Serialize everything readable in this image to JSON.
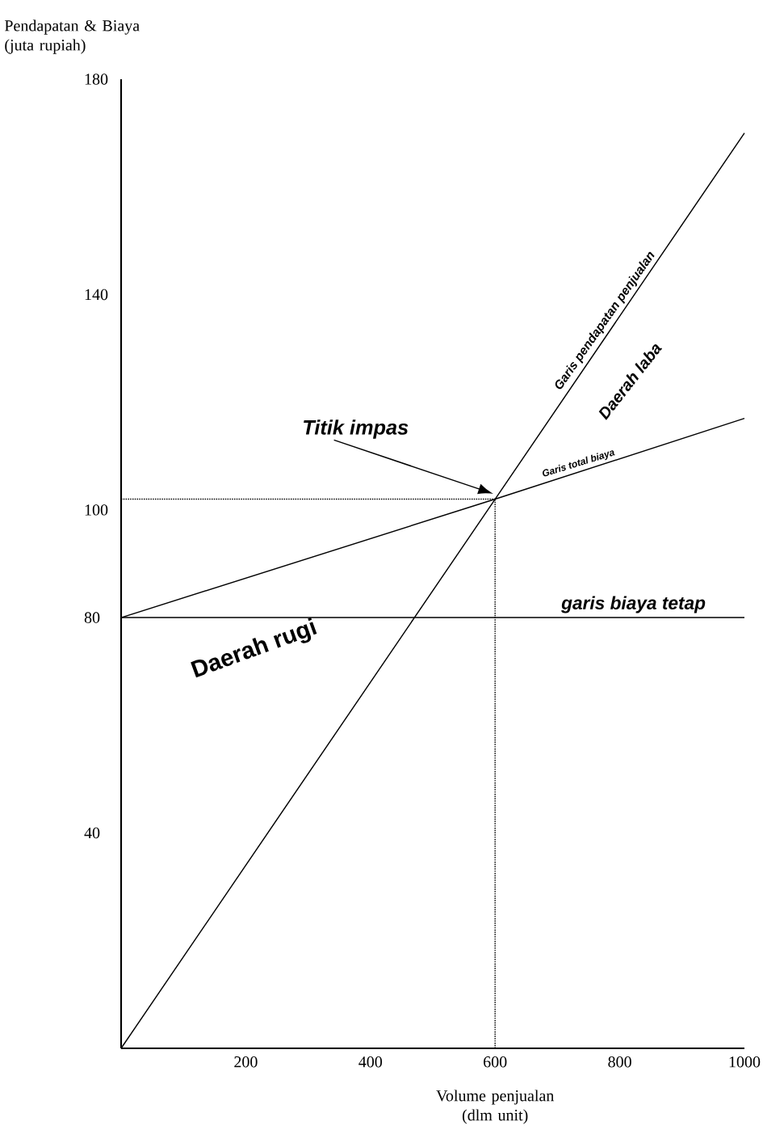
{
  "chart_data": {
    "type": "line",
    "xlabel": "Volume penjualan (dlm unit)",
    "ylabel": "Pendapatan & Biaya (juta rupiah)",
    "xlim": [
      0,
      1000
    ],
    "ylim": [
      0,
      180
    ],
    "xticks": [
      200,
      400,
      600,
      800,
      1000
    ],
    "yticks": [
      40,
      80,
      100,
      140,
      180
    ],
    "series": [
      {
        "x": [
          0,
          600,
          1000
        ],
        "values": [
          0,
          102,
          170
        ],
        "color": "#000000",
        "line_style": "solid"
      },
      {
        "x": [
          0,
          600,
          1000
        ],
        "values": [
          80,
          102,
          117
        ],
        "color": "#000000",
        "line_style": "solid"
      },
      {
        "x": [
          0,
          1000
        ],
        "values": [
          80,
          80
        ],
        "color": "#000000",
        "line_style": "solid"
      },
      {
        "x": [
          0,
          600
        ],
        "values": [
          102,
          102
        ],
        "color": "#000000",
        "line_style": "dotted"
      },
      {
        "x": [
          600,
          600
        ],
        "values": [
          0,
          102
        ],
        "color": "#000000",
        "line_style": "dotted"
      }
    ],
    "annotations": [
      "Titik impas",
      {
        "text": "Garis pendapatan penjualan",
        "x": 790,
        "y": 134
      },
      "Daerah laba",
      {
        "text": "Garis total biaya",
        "x": 738,
        "y": 107
      },
      {
        "text": "garis biaya tetap",
        "x": 822,
        "y": 80
      },
      "Daerah rugi"
    ]
  }
}
